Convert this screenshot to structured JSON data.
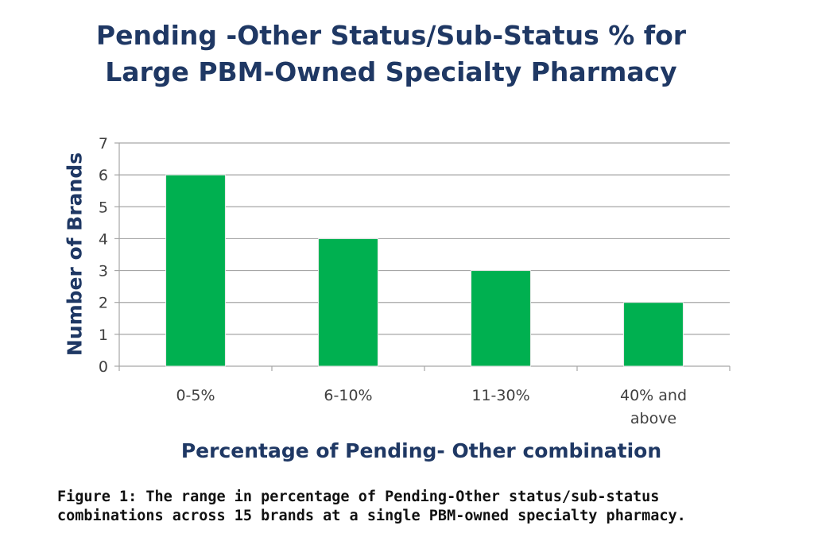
{
  "chart_data": {
    "type": "bar",
    "title": "Pending -Other Status/Sub-Status % for Large PBM-Owned Specialty Pharmacy",
    "categories": [
      "0-5%",
      "6-10%",
      "11-30%",
      "40% and above"
    ],
    "values": [
      6,
      4,
      3,
      2
    ],
    "xlabel": "Percentage of Pending- Other combination",
    "ylabel": "Number of Brands",
    "ylim": [
      0,
      7
    ],
    "yticks": [
      "0",
      "1",
      "2",
      "3",
      "4",
      "5",
      "6",
      "7"
    ],
    "grid": true,
    "legend": "none",
    "bar_color": "#00b050"
  },
  "caption": "Figure 1: The range in percentage of Pending-Other status/sub-status combinations across 15 brands at a single PBM-owned specialty pharmacy."
}
